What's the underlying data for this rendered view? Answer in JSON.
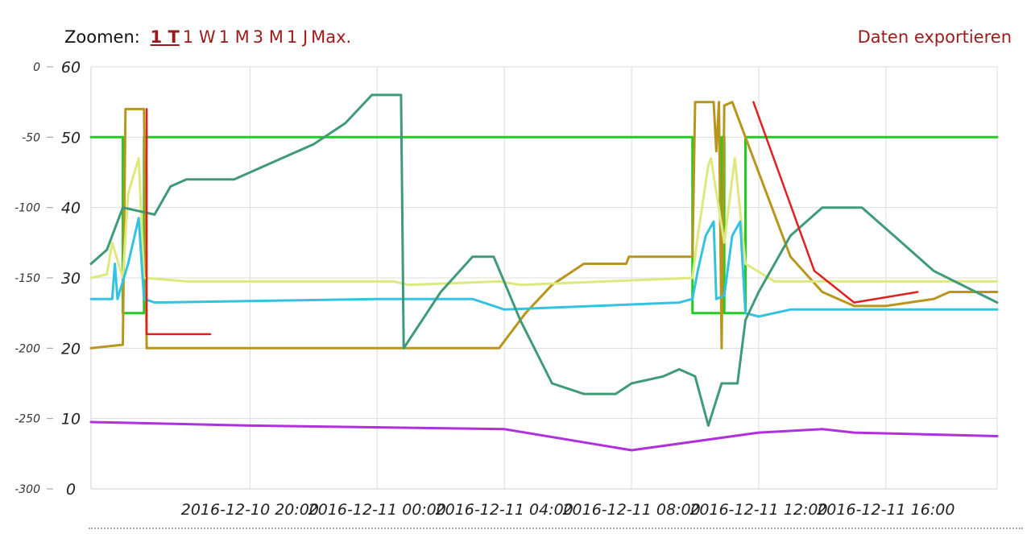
{
  "toolbar": {
    "zoom_label": "Zoomen:",
    "zoom_options": [
      "1 T",
      "1 W",
      "1 M",
      "3 M",
      "1 J",
      "Max."
    ],
    "active_zoom": 0,
    "export_label": "Daten exportieren"
  },
  "chart_data": {
    "type": "line",
    "title": "",
    "xlabel": "",
    "x_range": [
      "2016-12-10 15:00",
      "2016-12-11 19:30"
    ],
    "x_ticks": [
      "2016-12-10 20:00",
      "2016-12-11 00:00",
      "2016-12-11 04:00",
      "2016-12-11 08:00",
      "2016-12-11 12:00",
      "2016-12-11 16:00"
    ],
    "y_left": {
      "range": [
        -300,
        0
      ],
      "ticks": [
        0,
        -50,
        -100,
        -150,
        -200,
        -250,
        -300
      ]
    },
    "y_right": {
      "range": [
        0,
        60
      ],
      "ticks": [
        60,
        50,
        40,
        30,
        20,
        10,
        0
      ]
    },
    "grid": true,
    "legend": "none",
    "series": [
      {
        "color": "#22cc22",
        "axis": "right",
        "points": [
          [
            "2016-12-10 15:00",
            50
          ],
          [
            "2016-12-10 16:00",
            50
          ],
          [
            "2016-12-10 16:00",
            25
          ],
          [
            "2016-12-10 16:40",
            25
          ],
          [
            "2016-12-10 16:40",
            50
          ],
          [
            "2016-12-11 09:55",
            50
          ],
          [
            "2016-12-11 09:55",
            25
          ],
          [
            "2016-12-11 10:50",
            25
          ],
          [
            "2016-12-11 10:50",
            50
          ],
          [
            "2016-12-11 10:55",
            50
          ],
          [
            "2016-12-11 10:55",
            25
          ],
          [
            "2016-12-11 11:35",
            25
          ],
          [
            "2016-12-11 11:35",
            50
          ],
          [
            "2016-12-11 19:30",
            50
          ]
        ]
      },
      {
        "color": "#b8961e",
        "axis": "right",
        "points": [
          [
            "2016-12-10 15:00",
            20
          ],
          [
            "2016-12-10 16:00",
            20.5
          ],
          [
            "2016-12-10 16:05",
            54
          ],
          [
            "2016-12-10 16:40",
            54
          ],
          [
            "2016-12-10 16:45",
            20
          ],
          [
            "2016-12-11 03:50",
            20
          ],
          [
            "2016-12-11 04:40",
            25
          ],
          [
            "2016-12-11 05:30",
            29
          ],
          [
            "2016-12-11 06:30",
            32
          ],
          [
            "2016-12-11 07:50",
            32
          ],
          [
            "2016-12-11 07:55",
            33
          ],
          [
            "2016-12-11 09:55",
            33
          ],
          [
            "2016-12-11 10:00",
            55
          ],
          [
            "2016-12-11 10:35",
            55
          ],
          [
            "2016-12-11 10:40",
            48
          ],
          [
            "2016-12-11 10:45",
            55
          ],
          [
            "2016-12-11 10:50",
            20
          ],
          [
            "2016-12-11 10:55",
            54.5
          ],
          [
            "2016-12-11 11:10",
            55
          ],
          [
            "2016-12-11 12:00",
            45
          ],
          [
            "2016-12-11 13:00",
            33
          ],
          [
            "2016-12-11 14:00",
            28
          ],
          [
            "2016-12-11 15:00",
            26
          ],
          [
            "2016-12-11 16:00",
            26
          ],
          [
            "2016-12-11 17:30",
            27
          ],
          [
            "2016-12-11 18:00",
            28
          ],
          [
            "2016-12-11 19:30",
            28
          ]
        ]
      },
      {
        "color": "#dde87e",
        "axis": "right",
        "points": [
          [
            "2016-12-10 15:00",
            30
          ],
          [
            "2016-12-10 15:30",
            30.5
          ],
          [
            "2016-12-10 15:40",
            35
          ],
          [
            "2016-12-10 16:00",
            30
          ],
          [
            "2016-12-10 16:10",
            42
          ],
          [
            "2016-12-10 16:30",
            47
          ],
          [
            "2016-12-10 16:40",
            30
          ],
          [
            "2016-12-10 18:00",
            29.5
          ],
          [
            "2016-12-11 00:30",
            29.5
          ],
          [
            "2016-12-11 01:00",
            29
          ],
          [
            "2016-12-11 03:50",
            29.5
          ],
          [
            "2016-12-11 04:30",
            29
          ],
          [
            "2016-12-11 09:55",
            30
          ],
          [
            "2016-12-11 10:05",
            36
          ],
          [
            "2016-12-11 10:25",
            46
          ],
          [
            "2016-12-11 10:30",
            47
          ],
          [
            "2016-12-11 10:55",
            35
          ],
          [
            "2016-12-11 11:15",
            47
          ],
          [
            "2016-12-11 11:35",
            32
          ],
          [
            "2016-12-11 12:30",
            29.5
          ],
          [
            "2016-12-11 19:30",
            29.5
          ]
        ]
      },
      {
        "color": "#33c3e0",
        "axis": "right",
        "points": [
          [
            "2016-12-10 15:00",
            27
          ],
          [
            "2016-12-10 15:40",
            27
          ],
          [
            "2016-12-10 15:45",
            32
          ],
          [
            "2016-12-10 15:50",
            27
          ],
          [
            "2016-12-10 16:10",
            32
          ],
          [
            "2016-12-10 16:30",
            38.5
          ],
          [
            "2016-12-10 16:40",
            27
          ],
          [
            "2016-12-10 17:00",
            26.5
          ],
          [
            "2016-12-11 00:00",
            27
          ],
          [
            "2016-12-11 03:00",
            27
          ],
          [
            "2016-12-11 04:00",
            25.5
          ],
          [
            "2016-12-11 09:30",
            26.5
          ],
          [
            "2016-12-11 09:55",
            27
          ],
          [
            "2016-12-11 10:05",
            31
          ],
          [
            "2016-12-11 10:20",
            36
          ],
          [
            "2016-12-11 10:35",
            38
          ],
          [
            "2016-12-11 10:40",
            27
          ],
          [
            "2016-12-11 10:55",
            27.5
          ],
          [
            "2016-12-11 11:10",
            36
          ],
          [
            "2016-12-11 11:25",
            38
          ],
          [
            "2016-12-11 11:35",
            25
          ],
          [
            "2016-12-11 12:00",
            24.5
          ],
          [
            "2016-12-11 13:00",
            25.5
          ],
          [
            "2016-12-11 19:30",
            25.5
          ]
        ]
      },
      {
        "color": "#3f9a78",
        "axis": "right",
        "points": [
          [
            "2016-12-10 15:00",
            32
          ],
          [
            "2016-12-10 15:30",
            34
          ],
          [
            "2016-12-10 16:00",
            40
          ],
          [
            "2016-12-10 17:00",
            39
          ],
          [
            "2016-12-10 17:30",
            43
          ],
          [
            "2016-12-10 18:00",
            44
          ],
          [
            "2016-12-10 19:30",
            44
          ],
          [
            "2016-12-10 20:00",
            45
          ],
          [
            "2016-12-10 21:00",
            47
          ],
          [
            "2016-12-10 22:00",
            49
          ],
          [
            "2016-12-10 23:00",
            52
          ],
          [
            "2016-12-10 23:50",
            56
          ],
          [
            "2016-12-11 00:45",
            56
          ],
          [
            "2016-12-11 00:50",
            20
          ],
          [
            "2016-12-11 02:00",
            28
          ],
          [
            "2016-12-11 03:00",
            33
          ],
          [
            "2016-12-11 03:40",
            33
          ],
          [
            "2016-12-11 04:30",
            24
          ],
          [
            "2016-12-11 05:30",
            15
          ],
          [
            "2016-12-11 06:30",
            13.5
          ],
          [
            "2016-12-11 07:30",
            13.5
          ],
          [
            "2016-12-11 08:00",
            15
          ],
          [
            "2016-12-11 09:00",
            16
          ],
          [
            "2016-12-11 09:30",
            17
          ],
          [
            "2016-12-11 10:00",
            16
          ],
          [
            "2016-12-11 10:25",
            9
          ],
          [
            "2016-12-11 10:50",
            15
          ],
          [
            "2016-12-11 11:20",
            15
          ],
          [
            "2016-12-11 11:35",
            24
          ],
          [
            "2016-12-11 12:00",
            28
          ],
          [
            "2016-12-11 13:00",
            36
          ],
          [
            "2016-12-11 14:00",
            40
          ],
          [
            "2016-12-11 15:15",
            40
          ],
          [
            "2016-12-11 16:30",
            35
          ],
          [
            "2016-12-11 17:30",
            31
          ],
          [
            "2016-12-11 19:30",
            26.5
          ]
        ]
      },
      {
        "color": "#b030dd",
        "axis": "right",
        "points": [
          [
            "2016-12-10 15:00",
            9.5
          ],
          [
            "2016-12-10 20:00",
            9
          ],
          [
            "2016-12-11 04:00",
            8.5
          ],
          [
            "2016-12-11 08:00",
            5.5
          ],
          [
            "2016-12-11 12:00",
            8
          ],
          [
            "2016-12-11 14:00",
            8.5
          ],
          [
            "2016-12-11 15:00",
            8
          ],
          [
            "2016-12-11 19:30",
            7.5
          ]
        ]
      },
      {
        "color": "#e02020",
        "axis": "right",
        "points": [
          [
            "2016-12-10 16:45",
            54
          ],
          [
            "2016-12-10 16:45",
            22
          ],
          [
            "2016-12-10 18:45",
            22
          ]
        ]
      },
      {
        "color": "#e02020",
        "axis": "right",
        "points": [
          [
            "2016-12-11 11:50",
            55
          ],
          [
            "2016-12-11 13:45",
            31
          ],
          [
            "2016-12-11 15:00",
            26.5
          ],
          [
            "2016-12-11 17:00",
            28
          ]
        ]
      }
    ]
  }
}
